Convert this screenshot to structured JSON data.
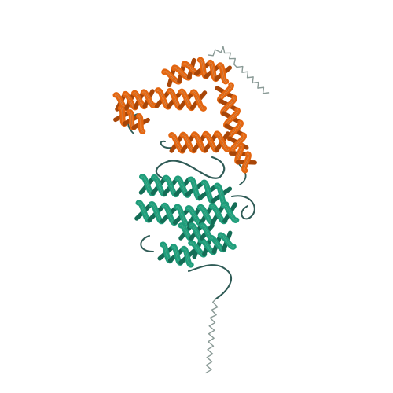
{
  "scene": {
    "background_color": "#ffffff",
    "subject": "protein-cartoon",
    "domains": [
      {
        "id": "domain-a",
        "label": "",
        "color": "#e3650f",
        "shade_color": "#a84608",
        "highlight_color": "#f39049"
      },
      {
        "id": "domain-b",
        "label": "",
        "color": "#1f9c7a",
        "shade_color": "#146d56",
        "highlight_color": "#3cc29b"
      }
    ],
    "loop_color": "#2f5b56",
    "tail_color": "#8a9a96"
  }
}
